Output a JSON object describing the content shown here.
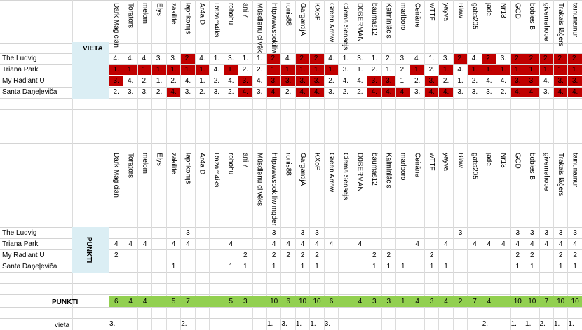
{
  "columns": [
    "Dark Magician",
    "Torators",
    "melom",
    "Elys",
    "zakilite",
    "laprikonijš",
    "Ar4a D",
    "Razam4iks",
    "rohohu",
    "anii7",
    "Mūsdienu cilvēks",
    "httpwwwspokiliwimgdeniedpn",
    "ronis88",
    "GargantijA",
    "KXoP",
    "Green Arrow",
    "Ciema Sensejs",
    "D0BERMAN",
    "baumas12",
    "Kaimiņlācis",
    "marlboro",
    "Čeirāne",
    "wTTF",
    "yayva",
    "Blaw",
    "gatis205",
    "jade",
    "Nr13",
    "GOD",
    "bobies B",
    "givemehope",
    "Trakais lāģers",
    "tainunainur"
  ],
  "headers": {
    "vieta": "VIETA",
    "punkti": "PUNKTI",
    "punkti_total": "PUNKTI",
    "vieta_row": "vieta"
  },
  "teams": [
    "The Ludvig",
    "Triana Park",
    "My Radiant U",
    "Santa Daņeļeviča"
  ],
  "votes": [
    [
      "4.",
      "4.",
      "4.",
      "3.",
      "3.",
      "2.",
      "4.",
      "1.",
      "3.",
      "1.",
      "1.",
      "2.",
      "4.",
      "2.",
      "2.",
      "4.",
      "1.",
      "3.",
      "1.",
      "2.",
      "3.",
      "4.",
      "1.",
      "3.",
      "2.",
      "4.",
      "2.",
      "3.",
      "2.",
      "2.",
      "2.",
      "2.",
      "2."
    ],
    [
      "1.",
      "1.",
      "1.",
      "1.",
      "1.",
      "1.",
      "1.",
      "4.",
      "1.",
      "2.",
      "2.",
      "1.",
      "1.",
      "1.",
      "1.",
      "1.",
      "3.",
      "1.",
      "2.",
      "1.",
      "2.",
      "1.",
      "2.",
      "1.",
      "4.",
      "1.",
      "1.",
      "1.",
      "1.",
      "1.",
      "1.",
      "1.",
      "1."
    ],
    [
      "3.",
      "4.",
      "2.",
      "1.",
      "2.",
      "4.",
      "1.",
      "2.",
      "4.",
      "3.",
      "4.",
      "3.",
      "3.",
      "3.",
      "3.",
      "2.",
      "4.",
      "4.",
      "3.",
      "3.",
      "1.",
      "2.",
      "3.",
      "2.",
      "1.",
      "2.",
      "4.",
      "4.",
      "3.",
      "3.",
      "4.",
      "3.",
      "3."
    ],
    [
      "2.",
      "3.",
      "3.",
      "2.",
      "4.",
      "3.",
      "2.",
      "3.",
      "2.",
      "4.",
      "3.",
      "4.",
      "2.",
      "4.",
      "4.",
      "3.",
      "2.",
      "2.",
      "4.",
      "4.",
      "4.",
      "3.",
      "4.",
      "4.",
      "3.",
      "3.",
      "3.",
      "2.",
      "4.",
      "4.",
      "3.",
      "4.",
      "4."
    ]
  ],
  "red_cells": [
    [
      0,
      0,
      0,
      0,
      0,
      1,
      0,
      0,
      0,
      0,
      0,
      1,
      0,
      1,
      1,
      0,
      0,
      0,
      0,
      0,
      0,
      0,
      0,
      0,
      1,
      0,
      1,
      0,
      1,
      1,
      1,
      1,
      1
    ],
    [
      1,
      1,
      1,
      1,
      1,
      1,
      1,
      0,
      1,
      0,
      0,
      1,
      1,
      1,
      1,
      1,
      0,
      0,
      0,
      0,
      0,
      1,
      0,
      1,
      0,
      1,
      1,
      1,
      1,
      1,
      1,
      1,
      1
    ],
    [
      1,
      0,
      0,
      0,
      0,
      0,
      0,
      0,
      0,
      1,
      0,
      1,
      1,
      1,
      1,
      0,
      0,
      0,
      1,
      1,
      0,
      0,
      1,
      0,
      0,
      0,
      0,
      0,
      1,
      1,
      0,
      1,
      1
    ],
    [
      0,
      0,
      0,
      0,
      1,
      0,
      0,
      0,
      0,
      1,
      0,
      1,
      0,
      1,
      1,
      0,
      0,
      0,
      1,
      1,
      1,
      0,
      1,
      1,
      0,
      0,
      0,
      0,
      1,
      1,
      0,
      1,
      1
    ]
  ],
  "points": [
    [
      "",
      "",
      "",
      "",
      "",
      "3",
      "",
      "",
      "",
      "",
      "",
      "3",
      "",
      "3",
      "3",
      "",
      "",
      "",
      "",
      "",
      "",
      "",
      "",
      "",
      "3",
      "",
      "",
      "",
      "3",
      "3",
      "3",
      "3",
      "3"
    ],
    [
      "4",
      "4",
      "4",
      "",
      "4",
      "4",
      "",
      "",
      "4",
      "",
      "",
      "4",
      "4",
      "4",
      "4",
      "4",
      "",
      "4",
      "",
      "",
      "",
      "4",
      "",
      "4",
      "",
      "4",
      "4",
      "4",
      "4",
      "4",
      "4",
      "4",
      "4"
    ],
    [
      "2",
      "",
      "",
      "",
      "",
      "",
      "",
      "",
      "",
      "2",
      "",
      "2",
      "2",
      "2",
      "2",
      "",
      "",
      "",
      "2",
      "2",
      "",
      "",
      "2",
      "",
      "",
      "",
      "",
      "",
      "2",
      "2",
      "",
      "2",
      "2"
    ],
    [
      "",
      "",
      "",
      "",
      "1",
      "",
      "",
      "",
      "1",
      "1",
      "",
      "1",
      "",
      "1",
      "1",
      "",
      "",
      "",
      "1",
      "1",
      "1",
      "",
      "1",
      "1",
      "",
      "",
      "",
      "",
      "1",
      "1",
      "",
      "1",
      "1"
    ]
  ],
  "totals": [
    "6",
    "4",
    "4",
    "",
    "5",
    "7",
    "",
    "",
    "5",
    "3",
    "",
    "10",
    "6",
    "10",
    "10",
    "6",
    "",
    "4",
    "3",
    "3",
    "1",
    "4",
    "3",
    "4",
    "2",
    "7",
    "4",
    "",
    "10",
    "10",
    "7",
    "10",
    "10"
  ],
  "vieta": [
    "3.",
    "",
    "",
    "",
    "",
    "2.",
    "",
    "",
    "",
    "",
    "",
    "1.",
    "3.",
    "1.",
    "1.",
    "3.",
    "",
    "",
    "",
    "",
    "",
    "",
    "",
    "",
    "",
    "",
    "2.",
    "",
    "1.",
    "1.",
    "2.",
    "1.",
    "1."
  ]
}
